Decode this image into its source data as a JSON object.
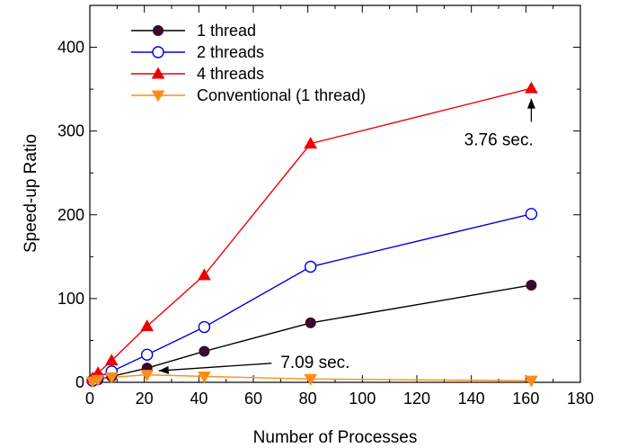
{
  "chart_data": {
    "type": "line",
    "xlabel": "Number of Processes",
    "ylabel": "Speed-up Ratio",
    "xlim": [
      0,
      180
    ],
    "ylim": [
      0,
      450
    ],
    "xticks": [
      0,
      20,
      40,
      60,
      80,
      100,
      120,
      140,
      160,
      180
    ],
    "yticks": [
      0,
      100,
      200,
      300,
      400
    ],
    "x_tick_labels": [
      "0",
      "20",
      "40",
      "60",
      "80",
      "100",
      "120",
      "140",
      "160",
      "180"
    ],
    "y_tick_labels": [
      "0",
      "100",
      "200",
      "300",
      "400"
    ],
    "grid": false,
    "legend_position": "top-left",
    "series": [
      {
        "name": "1 thread",
        "color": "#000000",
        "marker": "filled-circle",
        "marker_color": "#3a0a2a",
        "x": [
          1,
          3,
          8,
          21,
          42,
          81,
          162
        ],
        "y": [
          1,
          3,
          7,
          17,
          37,
          71,
          116
        ]
      },
      {
        "name": "2 threads",
        "color": "#0000dd",
        "marker": "open-circle",
        "marker_color": "#0000dd",
        "x": [
          1,
          3,
          8,
          21,
          42,
          81,
          162
        ],
        "y": [
          2,
          6,
          13,
          33,
          66,
          138,
          201
        ]
      },
      {
        "name": "4 threads",
        "color": "#ee0000",
        "marker": "triangle-up",
        "marker_color": "#ee0000",
        "x": [
          1,
          3,
          8,
          21,
          42,
          81,
          162
        ],
        "y": [
          5,
          11,
          26,
          67,
          128,
          285,
          351
        ]
      },
      {
        "name": "Conventional (1 thread)",
        "color": "#ff8c1a",
        "marker": "triangle-down",
        "marker_color": "#ff8c1a",
        "x": [
          1,
          3,
          8,
          21,
          42,
          81,
          162
        ],
        "y": [
          1,
          3,
          6,
          9,
          7,
          4,
          2
        ]
      }
    ],
    "annotations": [
      {
        "text": "3.76 sec.",
        "arrow_to": [
          162,
          343
        ],
        "text_at": [
          140,
          283
        ]
      },
      {
        "text": "7.09 sec.",
        "arrow_to": [
          22,
          17
        ],
        "text_at": [
          70,
          26
        ]
      }
    ]
  }
}
